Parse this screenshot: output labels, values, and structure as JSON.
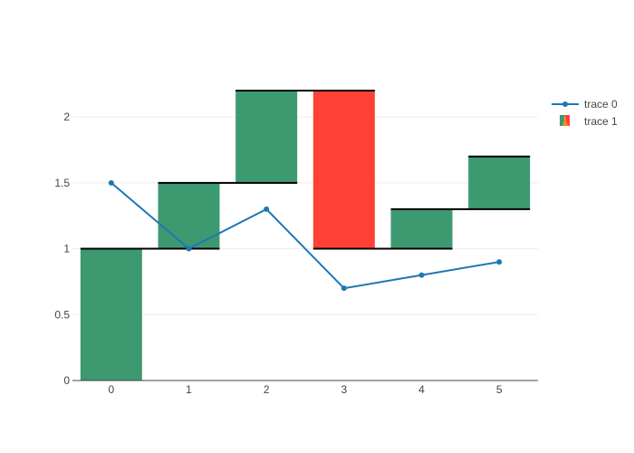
{
  "chart_data": {
    "type": "waterfall",
    "title": "",
    "xlabel": "",
    "ylabel": "",
    "categories": [
      "0",
      "1",
      "2",
      "3",
      "4",
      "5"
    ],
    "xlim": [
      -0.5,
      5.5
    ],
    "ylim": [
      0,
      2.2
    ],
    "y_ticks": [
      0,
      0.5,
      1,
      1.5,
      2
    ],
    "y_tick_labels": [
      "0",
      "0.5",
      "1",
      "1.5",
      "2"
    ],
    "grid": "y",
    "legend_position": "top-right",
    "series": [
      {
        "name": "trace 0",
        "type": "line",
        "color": "#1f77b4",
        "x": [
          0,
          1,
          2,
          3,
          4,
          5
        ],
        "y": [
          1.5,
          1.0,
          1.3,
          0.7,
          0.8,
          0.9
        ]
      },
      {
        "name": "trace 1",
        "type": "waterfall",
        "increasing_color": "#3d9970",
        "decreasing_color": "#ff4136",
        "connector_color": "#000000",
        "x": [
          0,
          1,
          2,
          3,
          4,
          5
        ],
        "deltas": [
          1.0,
          0.5,
          0.7,
          -1.2,
          0.3,
          0.4
        ]
      }
    ]
  }
}
